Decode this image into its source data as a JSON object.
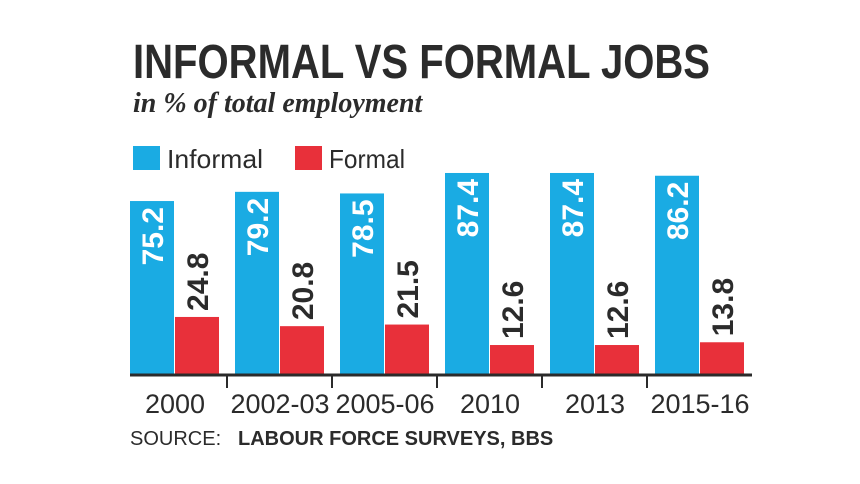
{
  "chart_data": {
    "type": "bar",
    "title": "INFORMAL VS FORMAL JOBS",
    "subtitle": "in % of total employment",
    "categories": [
      "2000",
      "2002-03",
      "2005-06",
      "2010",
      "2013",
      "2015-16"
    ],
    "series": [
      {
        "name": "Informal",
        "color": "#1aabe3",
        "values": [
          75.2,
          79.2,
          78.5,
          87.4,
          87.4,
          86.2
        ]
      },
      {
        "name": "Formal",
        "color": "#e8303a",
        "values": [
          24.8,
          20.8,
          21.5,
          12.6,
          12.6,
          13.8
        ]
      }
    ],
    "source_label": "SOURCE:",
    "source": "LABOUR FORCE SURVEYS, BBS"
  }
}
